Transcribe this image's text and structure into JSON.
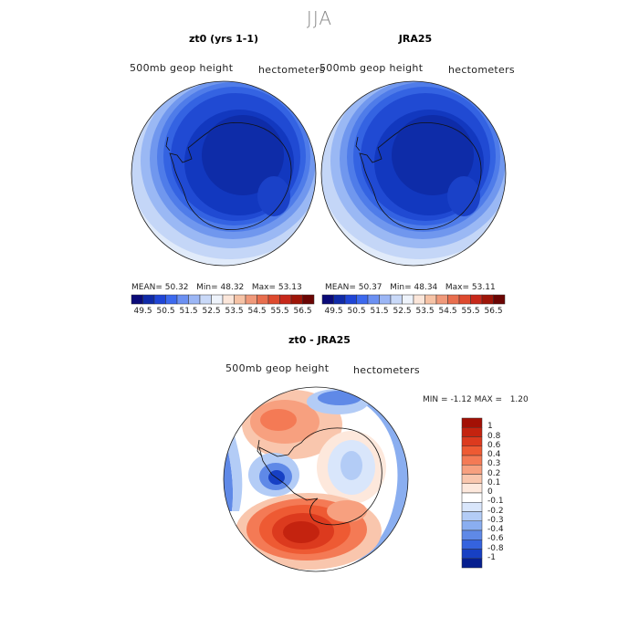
{
  "figure": {
    "season": "JJA"
  },
  "panels": [
    {
      "title": "zt0 (yrs 1-1)",
      "subtitle_left": "500mb geop height",
      "subtitle_right": "hectometers",
      "stats": {
        "mean_label": "MEAN=",
        "mean": "50.32",
        "min_label": "Min=",
        "min": "48.32",
        "max_label": "Max=",
        "max": "53.13"
      }
    },
    {
      "title": "JRA25",
      "subtitle_left": "500mb geop height",
      "subtitle_right": "hectometers",
      "stats": {
        "mean_label": "MEAN=",
        "mean": "50.37",
        "min_label": "Min=",
        "min": "48.34",
        "max_label": "Max=",
        "max": "53.11"
      }
    },
    {
      "title": "zt0 - JRA25",
      "subtitle_left": "500mb geop height",
      "subtitle_right": "hectometers",
      "stats": {
        "min_label": "MIN =",
        "min": "-1.12",
        "max_label": "MAX =",
        "max": "1.20"
      }
    }
  ],
  "colorbar_horizontal": {
    "ticks": [
      "49.5",
      "50.5",
      "51.5",
      "52.5",
      "53.5",
      "54.5",
      "55.5",
      "56.5"
    ],
    "colors": [
      "#0a0a78",
      "#0f2aa8",
      "#1f45d6",
      "#3c69ee",
      "#6b90f2",
      "#9bb6f5",
      "#c9d9f8",
      "#eef3fb",
      "#fbe6da",
      "#f6c3a6",
      "#f0997a",
      "#e86e4e",
      "#de4a2e",
      "#c7281a",
      "#9e1508",
      "#6b0503"
    ]
  },
  "colorbar_vertical": {
    "labels": [
      "1",
      "0.8",
      "0.6",
      "0.4",
      "0.3",
      "0.2",
      "0.1",
      "0",
      "-0.1",
      "-0.2",
      "-0.3",
      "-0.4",
      "-0.6",
      "-0.8",
      "-1"
    ],
    "colors": [
      "#a31005",
      "#c4230f",
      "#dc3a1e",
      "#ee5a33",
      "#f47a55",
      "#f7a07f",
      "#f9c6ad",
      "#fde8dc",
      "#ffffff",
      "#d9e6fb",
      "#b3ccf6",
      "#8aaef0",
      "#5f89e7",
      "#3563de",
      "#1740c4",
      "#061f8f"
    ]
  }
}
